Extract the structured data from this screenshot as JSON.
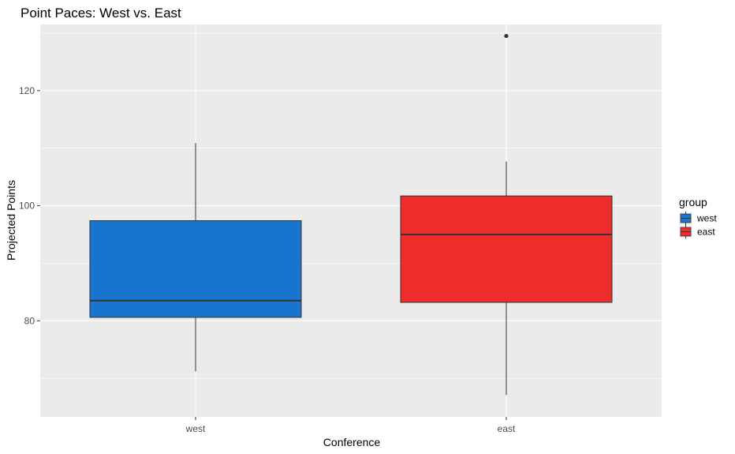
{
  "chart_data": {
    "type": "boxplot",
    "title": "Point Paces: West vs. East",
    "xlabel": "Conference",
    "ylabel": "Projected Points",
    "categories": [
      "west",
      "east"
    ],
    "ylim": [
      63.3,
      131.5
    ],
    "y_ticks": [
      80,
      100,
      120
    ],
    "y_minor_ticks": [
      70,
      90,
      110,
      130
    ],
    "grid": true,
    "legend": {
      "title": "group",
      "position": "right",
      "entries": [
        "west",
        "east"
      ]
    },
    "series": [
      {
        "category": "west",
        "group": "west",
        "color": "#1874CD",
        "whisker_low": 71.2,
        "q1": 80.6,
        "median": 83.5,
        "q3": 97.4,
        "whisker_high": 110.9,
        "outliers": []
      },
      {
        "category": "east",
        "group": "east",
        "color": "#EE2C2C",
        "whisker_low": 67.1,
        "q1": 83.2,
        "median": 95.0,
        "q3": 101.7,
        "whisker_high": 107.7,
        "outliers": [
          129.5
        ]
      }
    ]
  }
}
